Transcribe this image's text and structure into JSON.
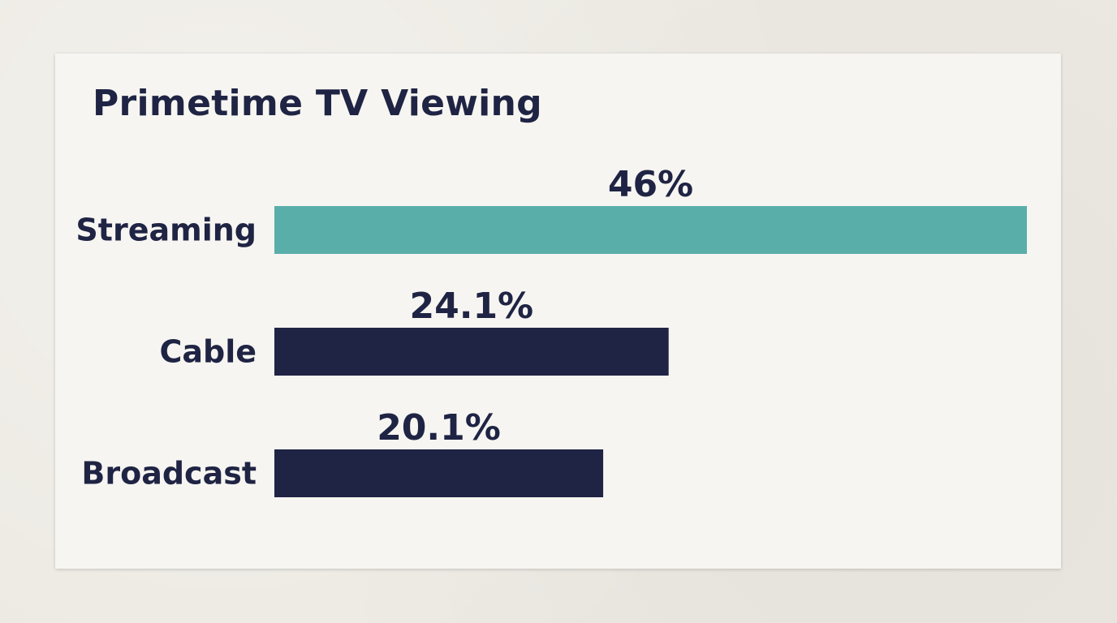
{
  "chart_data": {
    "type": "bar",
    "orientation": "horizontal",
    "title": "Primetime TV Viewing",
    "categories": [
      "Streaming",
      "Cable",
      "Broadcast"
    ],
    "values": [
      46,
      24.1,
      20.1
    ],
    "value_labels": [
      "46%",
      "24.1%",
      "20.1%"
    ],
    "unit": "%",
    "xlim": [
      0,
      46
    ],
    "grid": false,
    "legend": "none",
    "colors": {
      "highlight": "#5aaea9",
      "default": "#1f2444",
      "text": "#1f2444",
      "card": "#f6f5f1",
      "background": "#ece9e2"
    },
    "highlight_index": 0
  }
}
